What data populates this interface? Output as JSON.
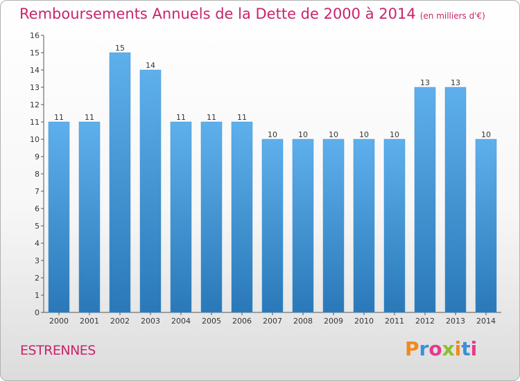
{
  "chart_data": {
    "type": "bar",
    "title": "Remboursements Annuels de la Dette de 2000 à 2014",
    "subtitle": "(en milliers d'€)",
    "categories": [
      "2000",
      "2001",
      "2002",
      "2003",
      "2004",
      "2005",
      "2006",
      "2007",
      "2008",
      "2009",
      "2010",
      "2011",
      "2012",
      "2013",
      "2014"
    ],
    "values": [
      11,
      11,
      15,
      14,
      11,
      11,
      11,
      10,
      10,
      10,
      10,
      10,
      13,
      13,
      10
    ],
    "ylim": [
      0,
      16
    ],
    "yticks": [
      0,
      1,
      2,
      3,
      4,
      5,
      6,
      7,
      8,
      9,
      10,
      11,
      12,
      13,
      14,
      15,
      16
    ],
    "grid": false,
    "bar_color_top": "#5eb0ec",
    "bar_color_bottom": "#2a78b8"
  },
  "footer": {
    "town": "ESTRENNES",
    "logo": "Proxiti"
  },
  "colors": {
    "title": "#c8246b",
    "logo_letters": [
      "#f08a1c",
      "#3c8fd8",
      "#e63a8a",
      "#8cbf2a",
      "#f08a1c",
      "#3c8fd8",
      "#e63a8a"
    ]
  }
}
